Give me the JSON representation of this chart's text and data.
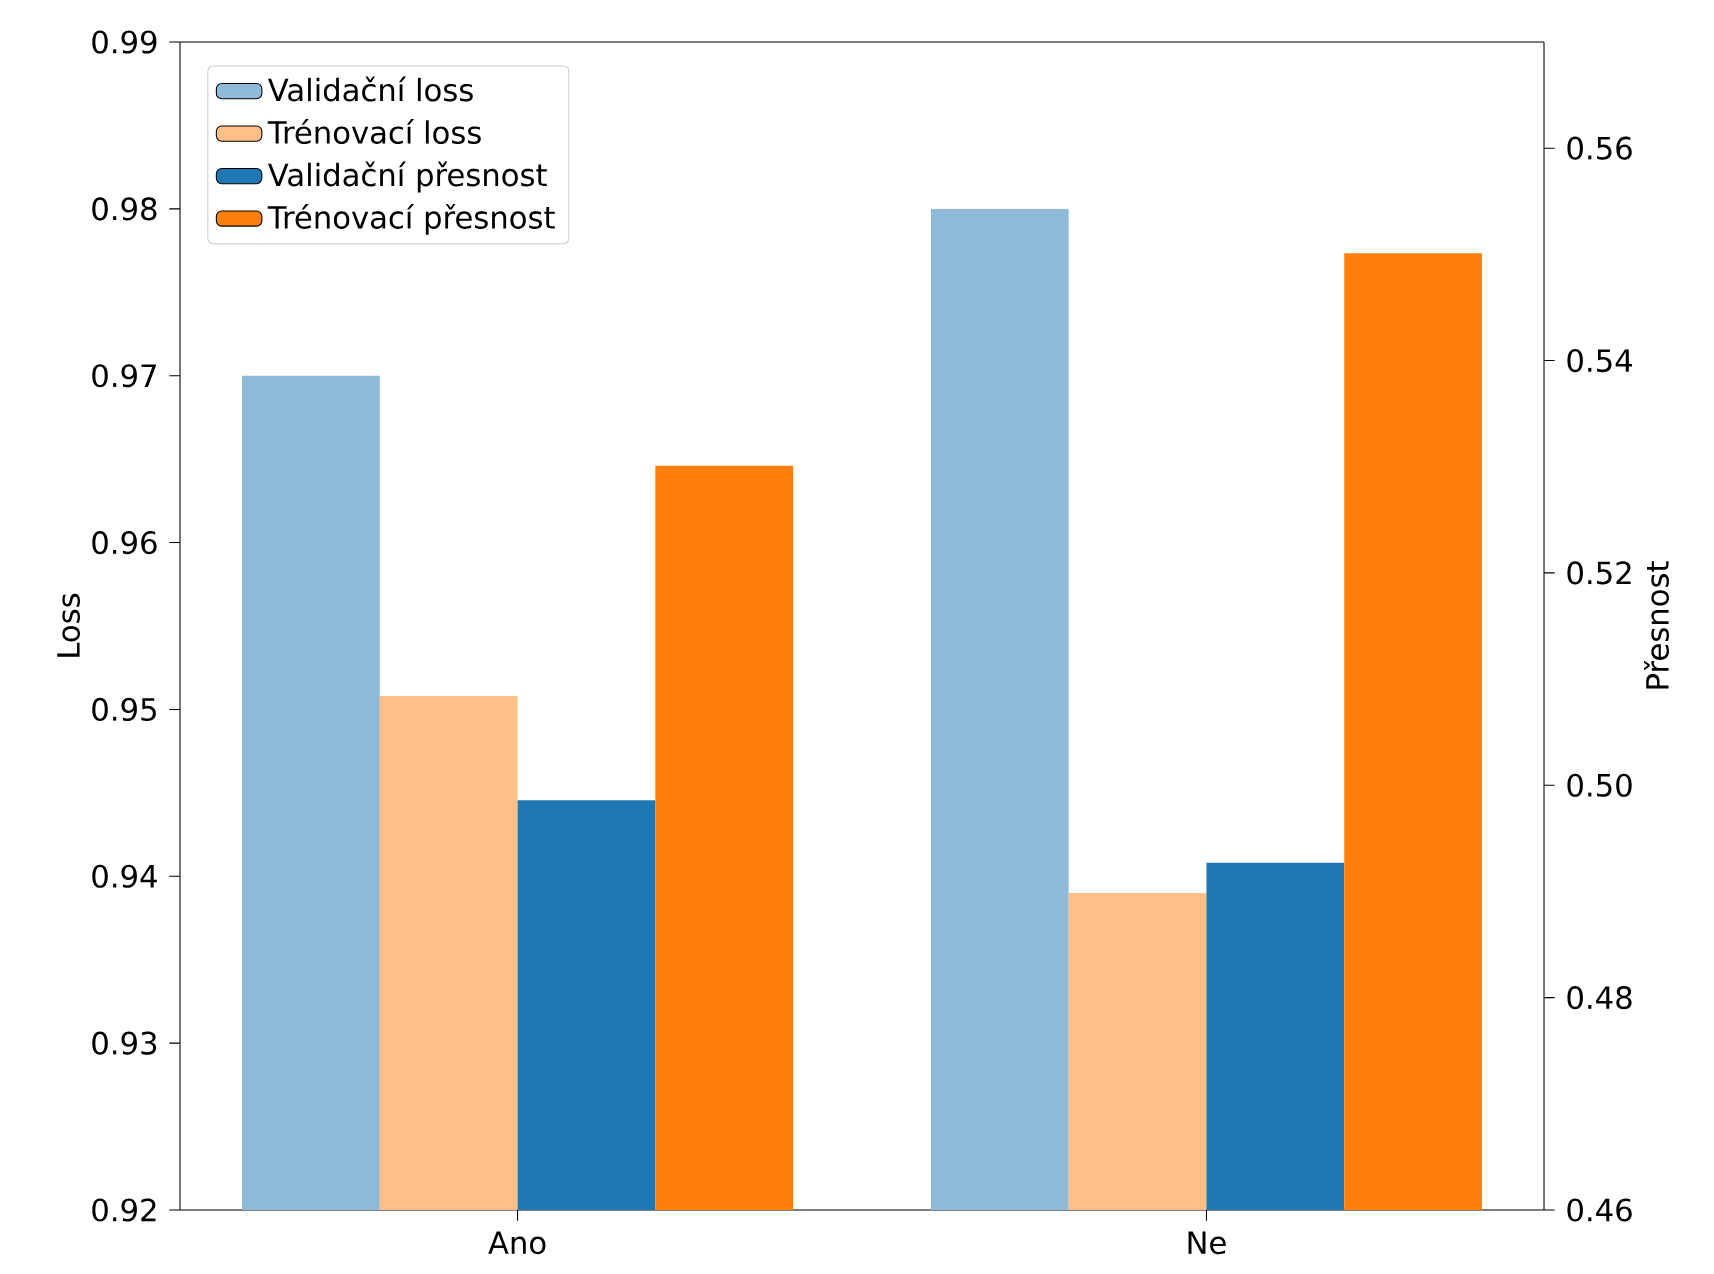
{
  "chart_data": {
    "type": "bar",
    "ylabel": "Loss",
    "y2label": "Přesnost",
    "categories": [
      "Ano",
      "Ne"
    ],
    "series": [
      {
        "name": "Validační loss",
        "color": "#8fbbd9",
        "values": [
          0.97,
          0.98
        ]
      },
      {
        "name": "Trénovací loss",
        "color": "#ffbf86",
        "values": [
          0.9508,
          0.939
        ]
      },
      {
        "name": "Validační přesnost",
        "color": "#1f77b4",
        "values": [
          0.4986,
          0.4927
        ],
        "axis": "y2"
      },
      {
        "name": "Trénovací přesnost",
        "color": "#ff7f0e",
        "values": [
          0.5301,
          0.5501
        ],
        "axis": "y2"
      }
    ],
    "ylim": [
      0.92,
      0.99
    ],
    "yticks": [
      0.92,
      0.93,
      0.94,
      0.95,
      0.96,
      0.97,
      0.98,
      0.99
    ],
    "y2lim": [
      0.46,
      0.57
    ],
    "y2ticks": [
      0.46,
      0.48,
      {
        "value": 0.5,
        "label": "0.50"
      },
      0.52,
      0.54,
      0.56
    ],
    "legend": "top left",
    "grid": false
  }
}
